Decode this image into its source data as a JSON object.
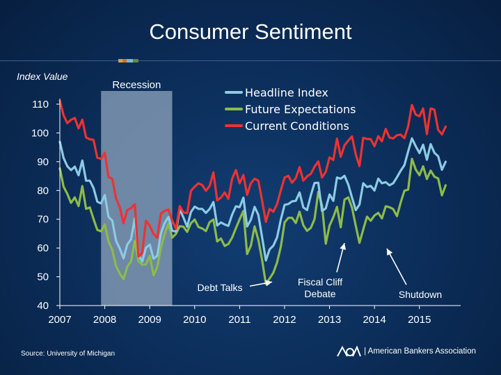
{
  "header": {
    "title": "Consumer Sentiment"
  },
  "footer": {
    "source": "Source: University of Michigan",
    "brand": "| American Bankers Association"
  },
  "colors": {
    "headline": "#8ccbe5",
    "future": "#8dbb4a",
    "current": "#ee3232",
    "recession": "#8fa5bd",
    "axis": "#ffffff",
    "divider": [
      "#d8a43a",
      "#c8772a",
      "#7bb7cf",
      "#5f8a3a"
    ]
  },
  "chart_data": {
    "type": "line",
    "ylabel": "Index Value",
    "ylim": [
      40,
      110
    ],
    "yticks": [
      40,
      50,
      60,
      70,
      80,
      90,
      100,
      110
    ],
    "xlim": [
      2007,
      2015.917
    ],
    "xticks": [
      "2007",
      "2008",
      "2009",
      "2010",
      "2011",
      "2012",
      "2013",
      "2014",
      "2015"
    ],
    "recession": {
      "label": "Recession",
      "start": 2007.917,
      "end": 2009.5
    },
    "legend_position": "top-center",
    "series": [
      {
        "name": "Headline Index",
        "color": "#8ccbe5",
        "values": [
          96.9,
          91.3,
          88.4,
          87.1,
          88.3,
          85.3,
          90.4,
          83.4,
          83.4,
          80.9,
          76.1,
          75.5,
          78.4,
          70.8,
          69.5,
          62.6,
          59.8,
          56.4,
          61.2,
          63.0,
          70.3,
          57.6,
          55.3,
          60.1,
          61.2,
          56.3,
          57.3,
          65.1,
          68.7,
          70.8,
          66.0,
          65.7,
          73.5,
          70.6,
          67.4,
          72.5,
          74.4,
          73.6,
          73.6,
          72.2,
          73.6,
          76.0,
          67.8,
          68.9,
          68.2,
          67.7,
          71.6,
          74.5,
          74.2,
          77.5,
          67.5,
          69.8,
          74.3,
          71.5,
          63.7,
          55.7,
          59.5,
          60.8,
          63.7,
          69.9,
          75.0,
          75.3,
          76.2,
          76.4,
          79.3,
          74.1,
          73.2,
          78.3,
          82.6,
          82.7,
          72.9,
          73.8,
          78.6,
          76.4,
          84.5,
          84.1,
          85.1,
          82.1,
          77.5,
          73.2,
          75.1,
          82.5,
          81.2,
          81.6,
          80.0,
          84.1,
          82.5,
          82.9,
          81.8,
          82.5,
          84.6,
          86.9,
          88.8,
          93.6,
          98.1,
          95.4,
          93.0,
          95.9,
          90.7,
          96.1,
          93.1,
          91.9,
          87.2,
          90.0
        ],
        "start": 2007.0
      },
      {
        "name": "Future Expectations",
        "color": "#8dbb4a",
        "values": [
          87.7,
          81.3,
          78.8,
          75.7,
          77.6,
          74.6,
          81.5,
          73.6,
          74.1,
          70.1,
          66.3,
          65.8,
          68.2,
          62.3,
          59.3,
          53.8,
          51.1,
          49.2,
          53.5,
          55.3,
          62.5,
          55.4,
          54.2,
          54.3,
          57.3,
          50.5,
          53.4,
          60.2,
          65.0,
          68.4,
          63.6,
          64.9,
          67.6,
          67.4,
          65.6,
          68.6,
          69.9,
          67.3,
          66.8,
          65.9,
          69.0,
          69.9,
          62.3,
          63.3,
          60.7,
          61.4,
          63.6,
          66.9,
          70.0,
          72.9,
          57.9,
          60.8,
          67.5,
          62.8,
          55.8,
          47.5,
          49.4,
          51.4,
          55.0,
          60.5,
          68.9,
          70.5,
          70.5,
          68.7,
          72.6,
          67.9,
          66.0,
          67.0,
          70.0,
          79.5,
          74.8,
          61.5,
          67.8,
          70.7,
          74.3,
          67.2,
          76.8,
          77.6,
          74.0,
          67.7,
          61.8,
          66.4,
          70.9,
          69.5,
          71.3,
          72.2,
          70.3,
          74.5,
          74.2,
          73.5,
          71.1,
          75.9,
          79.9,
          80.3,
          91.0,
          87.3,
          85.3,
          88.4,
          84.0,
          86.9,
          84.8,
          84.2,
          78.3,
          81.8
        ],
        "start": 2007.0
      },
      {
        "name": "Current Conditions",
        "color": "#ee3232",
        "values": [
          111.2,
          106.1,
          103.4,
          104.6,
          105.2,
          101.6,
          104.6,
          98.4,
          97.8,
          97.6,
          91.4,
          91.0,
          93.1,
          84.7,
          84.0,
          77.3,
          74.2,
          68.6,
          73.2,
          73.9,
          75.2,
          57.0,
          58.4,
          69.5,
          67.7,
          64.9,
          63.6,
          72.0,
          72.9,
          73.4,
          69.5,
          66.6,
          74.6,
          72.4,
          72.1,
          79.9,
          81.3,
          82.5,
          81.9,
          79.9,
          81.6,
          86.3,
          76.6,
          77.5,
          79.3,
          77.1,
          84.1,
          87.1,
          82.5,
          85.4,
          78.5,
          82.5,
          84.1,
          83.4,
          76.4,
          69.1,
          73.6,
          72.6,
          75.3,
          80.1,
          84.5,
          85.1,
          82.7,
          84.3,
          88.1,
          83.4,
          84.9,
          85.8,
          88.2,
          90.1,
          84.5,
          86.5,
          91.5,
          90.6,
          98.0,
          91.7,
          95.7,
          97.3,
          98.8,
          92.5,
          88.5,
          98.3,
          97.9,
          97.8,
          95.4,
          98.9,
          97.1,
          101.4,
          98.4,
          98.1,
          99.2,
          99.4,
          98.2,
          102.3,
          109.7,
          106.4,
          105.8,
          108.5,
          99.6,
          108.5,
          108.1,
          101.1,
          99.5,
          102.2
        ],
        "start": 2007.0
      }
    ],
    "annotations": [
      {
        "text": "Debt Talks",
        "x": 2011.6,
        "y": 49
      },
      {
        "text": "Fiscal Cliff\nDebate",
        "x": 2012.95,
        "y": 63
      },
      {
        "text": "Shutdown",
        "x": 2013.8,
        "y": 62
      }
    ]
  }
}
